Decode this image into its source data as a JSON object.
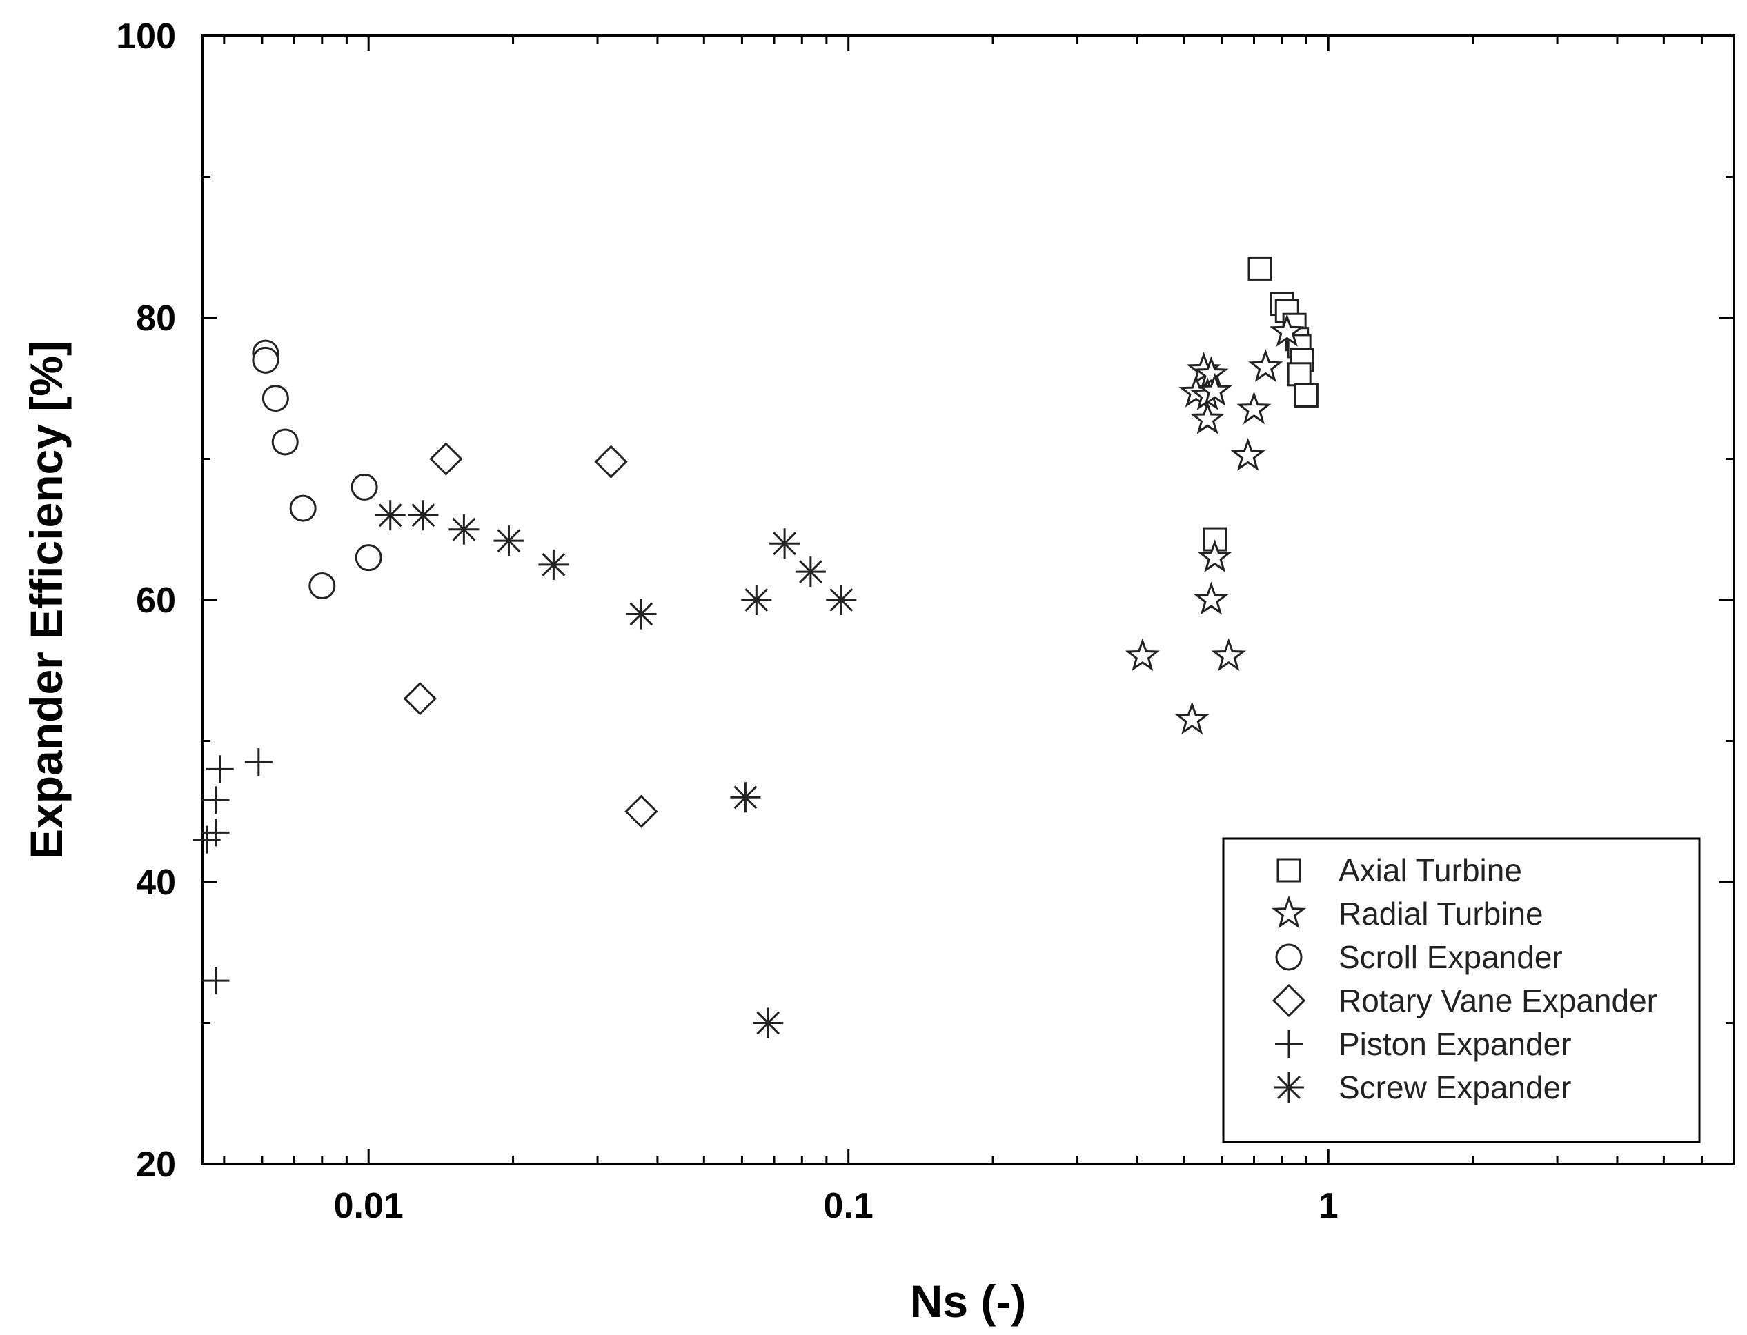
{
  "chart_data": {
    "type": "scatter",
    "title": "",
    "xlabel": "Ns (-)",
    "ylabel": "Expander Efficiency [%]",
    "x_scale": "log",
    "xlim": [
      0.0045,
      7.0
    ],
    "ylim": [
      20,
      100
    ],
    "x_ticks": [
      {
        "value": 0.01,
        "label": "0.01"
      },
      {
        "value": 0.1,
        "label": "0.1"
      },
      {
        "value": 1,
        "label": "1"
      }
    ],
    "y_ticks": [
      {
        "value": 20,
        "label": "20"
      },
      {
        "value": 40,
        "label": "40"
      },
      {
        "value": 60,
        "label": "60"
      },
      {
        "value": 80,
        "label": "80"
      },
      {
        "value": 100,
        "label": "100"
      }
    ],
    "grid": false,
    "legend_position": "bottom-right",
    "series": [
      {
        "name": "Axial Turbine",
        "marker": "square",
        "points": [
          [
            0.72,
            83.5
          ],
          [
            0.8,
            81.0
          ],
          [
            0.82,
            80.5
          ],
          [
            0.85,
            79.5
          ],
          [
            0.86,
            78.5
          ],
          [
            0.87,
            78.0
          ],
          [
            0.88,
            77.0
          ],
          [
            0.87,
            76.0
          ],
          [
            0.9,
            74.5
          ],
          [
            0.58,
            64.3
          ]
        ]
      },
      {
        "name": "Radial Turbine",
        "marker": "star",
        "points": [
          [
            0.82,
            79.0
          ],
          [
            0.74,
            76.5
          ],
          [
            0.55,
            76.3
          ],
          [
            0.57,
            76.0
          ],
          [
            0.53,
            74.7
          ],
          [
            0.56,
            74.5
          ],
          [
            0.58,
            74.8
          ],
          [
            0.7,
            73.5
          ],
          [
            0.56,
            72.8
          ],
          [
            0.68,
            70.2
          ],
          [
            0.58,
            63.0
          ],
          [
            0.57,
            60.0
          ],
          [
            0.41,
            56.0
          ],
          [
            0.62,
            56.0
          ],
          [
            0.52,
            51.5
          ]
        ]
      },
      {
        "name": "Scroll Expander",
        "marker": "circle",
        "points": [
          [
            0.0061,
            77.5
          ],
          [
            0.0061,
            77.0
          ],
          [
            0.0064,
            74.3
          ],
          [
            0.0067,
            71.2
          ],
          [
            0.0073,
            66.5
          ],
          [
            0.0098,
            68.0
          ],
          [
            0.008,
            61.0
          ],
          [
            0.01,
            63.0
          ]
        ]
      },
      {
        "name": "Rotary Vane Expander",
        "marker": "diamond",
        "points": [
          [
            0.0145,
            70.0
          ],
          [
            0.032,
            69.8
          ],
          [
            0.0128,
            53.0
          ],
          [
            0.037,
            45.0
          ]
        ]
      },
      {
        "name": "Piston Expander",
        "marker": "plus",
        "points": [
          [
            0.0049,
            48.0
          ],
          [
            0.0059,
            48.5
          ],
          [
            0.0048,
            45.8
          ],
          [
            0.0048,
            43.5
          ],
          [
            0.0046,
            43.0
          ],
          [
            0.0048,
            33.0
          ]
        ]
      },
      {
        "name": "Screw Expander",
        "marker": "asterisk",
        "points": [
          [
            0.0111,
            66.0
          ],
          [
            0.013,
            66.0
          ],
          [
            0.0158,
            65.0
          ],
          [
            0.0196,
            64.2
          ],
          [
            0.0243,
            62.5
          ],
          [
            0.037,
            59.0
          ],
          [
            0.0643,
            60.0
          ],
          [
            0.0736,
            64.0
          ],
          [
            0.0834,
            62.0
          ],
          [
            0.0966,
            60.0
          ],
          [
            0.061,
            46.0
          ],
          [
            0.068,
            30.0
          ]
        ]
      }
    ]
  }
}
